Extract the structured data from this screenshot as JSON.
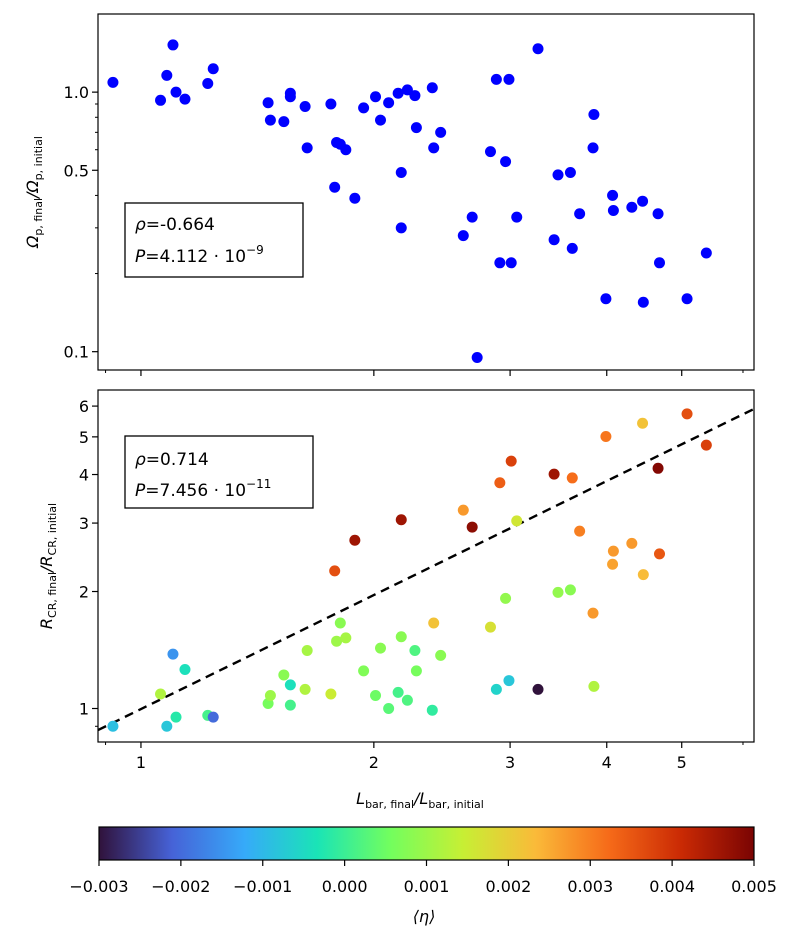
{
  "chart_data": [
    {
      "type": "scatter",
      "xscale": "log",
      "yscale": "log",
      "xlim": [
        0.88,
        6.2
      ],
      "ylim": [
        0.085,
        2.0
      ],
      "ylabel": {
        "main": "Ω",
        "sub1": "p, final",
        "mid": "/Ω",
        "sub2": "p, initial"
      },
      "yticks": [
        {
          "v": 0.1,
          "label": "0.1"
        },
        {
          "v": 0.5,
          "label": "0.5"
        },
        {
          "v": 1.0,
          "label": "1.0"
        }
      ],
      "stats": {
        "rho_label": "ρ",
        "rho": "=-0.664",
        "p_label": "P",
        "p_text": "=4.112 · 10",
        "p_exp": "−9"
      },
      "marker_color": "#0000ff",
      "points": [
        [
          0.92,
          1.09
        ],
        [
          1.06,
          0.93
        ],
        [
          1.08,
          1.16
        ],
        [
          1.1,
          1.52
        ],
        [
          1.11,
          1.0
        ],
        [
          1.14,
          0.94
        ],
        [
          1.22,
          1.08
        ],
        [
          1.24,
          1.23
        ],
        [
          1.46,
          0.91
        ],
        [
          1.47,
          0.78
        ],
        [
          1.53,
          0.77
        ],
        [
          1.56,
          0.99
        ],
        [
          1.56,
          0.96
        ],
        [
          1.63,
          0.88
        ],
        [
          1.64,
          0.61
        ],
        [
          1.76,
          0.9
        ],
        [
          1.78,
          0.43
        ],
        [
          1.79,
          0.64
        ],
        [
          1.81,
          0.63
        ],
        [
          1.84,
          0.6
        ],
        [
          1.89,
          0.39
        ],
        [
          1.94,
          0.87
        ],
        [
          2.01,
          0.96
        ],
        [
          2.04,
          0.78
        ],
        [
          2.09,
          0.91
        ],
        [
          2.15,
          0.99
        ],
        [
          2.17,
          0.49
        ],
        [
          2.17,
          0.3
        ],
        [
          2.21,
          1.02
        ],
        [
          2.26,
          0.97
        ],
        [
          2.27,
          0.73
        ],
        [
          2.38,
          1.04
        ],
        [
          2.39,
          0.61
        ],
        [
          2.44,
          0.7
        ],
        [
          2.61,
          0.28
        ],
        [
          2.68,
          0.33
        ],
        [
          2.72,
          0.095
        ],
        [
          2.83,
          0.59
        ],
        [
          2.88,
          1.12
        ],
        [
          2.91,
          0.22
        ],
        [
          2.96,
          0.54
        ],
        [
          2.99,
          1.12
        ],
        [
          3.01,
          0.22
        ],
        [
          3.06,
          0.33
        ],
        [
          3.26,
          1.47
        ],
        [
          3.42,
          0.27
        ],
        [
          3.46,
          0.48
        ],
        [
          3.59,
          0.49
        ],
        [
          3.61,
          0.25
        ],
        [
          3.69,
          0.34
        ],
        [
          3.84,
          0.61
        ],
        [
          3.85,
          0.82
        ],
        [
          3.99,
          0.16
        ],
        [
          4.07,
          0.4
        ],
        [
          4.08,
          0.35
        ],
        [
          4.31,
          0.36
        ],
        [
          4.45,
          0.38
        ],
        [
          4.46,
          0.155
        ],
        [
          4.66,
          0.34
        ],
        [
          4.68,
          0.22
        ],
        [
          5.08,
          0.16
        ],
        [
          5.38,
          0.24
        ]
      ]
    },
    {
      "type": "scatter",
      "xscale": "log",
      "yscale": "log",
      "xlim": [
        0.88,
        6.2
      ],
      "ylim": [
        0.82,
        6.6
      ],
      "xlabel": {
        "main": "L",
        "sub1": "bar, final",
        "mid": "/L",
        "sub2": "bar, initial"
      },
      "ylabel": {
        "main": "R",
        "sub1": "CR, final",
        "mid": "/R",
        "sub2": "CR, initial"
      },
      "xticks": [
        {
          "v": 1,
          "label": "1"
        },
        {
          "v": 2,
          "label": "2"
        },
        {
          "v": 3,
          "label": "3"
        },
        {
          "v": 4,
          "label": "4"
        },
        {
          "v": 5,
          "label": "5"
        }
      ],
      "yticks": [
        {
          "v": 1,
          "label": "1"
        },
        {
          "v": 2,
          "label": "2"
        },
        {
          "v": 3,
          "label": "3"
        },
        {
          "v": 4,
          "label": "4"
        },
        {
          "v": 5,
          "label": "5"
        },
        {
          "v": 6,
          "label": "6"
        }
      ],
      "stats": {
        "rho_label": "ρ",
        "rho": "=0.714",
        "p_label": "P",
        "p_text": "=7.456 · 10",
        "p_exp": "−11"
      },
      "fit_line": {
        "x0": 0.88,
        "y0": 0.88,
        "x1": 6.2,
        "y1": 5.9,
        "style": "dashed"
      },
      "points": [
        [
          0.92,
          0.9,
          -0.0009
        ],
        [
          1.06,
          1.09,
          0.0012
        ],
        [
          1.08,
          0.9,
          -0.0008
        ],
        [
          1.1,
          1.38,
          -0.0015
        ],
        [
          1.11,
          0.95,
          -0.0002
        ],
        [
          1.14,
          1.26,
          -0.0004
        ],
        [
          1.22,
          0.96,
          0.0001
        ],
        [
          1.24,
          0.95,
          -0.002
        ],
        [
          1.46,
          1.03,
          0.0006
        ],
        [
          1.47,
          1.08,
          0.001
        ],
        [
          1.53,
          1.22,
          0.0008
        ],
        [
          1.56,
          1.15,
          -0.0004
        ],
        [
          1.56,
          1.02,
          0.0001
        ],
        [
          1.63,
          1.12,
          0.0012
        ],
        [
          1.64,
          1.41,
          0.0011
        ],
        [
          1.76,
          1.09,
          0.0015
        ],
        [
          1.78,
          2.26,
          0.0036
        ],
        [
          1.79,
          1.49,
          0.001
        ],
        [
          1.81,
          1.66,
          0.0008
        ],
        [
          1.84,
          1.52,
          0.0011
        ],
        [
          1.89,
          2.71,
          0.0046
        ],
        [
          1.94,
          1.25,
          0.0007
        ],
        [
          2.01,
          1.08,
          0.0005
        ],
        [
          2.04,
          1.43,
          0.0008
        ],
        [
          2.09,
          1.0,
          0.0003
        ],
        [
          2.15,
          1.1,
          0.0001
        ],
        [
          2.17,
          1.53,
          0.0008
        ],
        [
          2.17,
          3.06,
          0.0046
        ],
        [
          2.21,
          1.05,
          0.0002
        ],
        [
          2.26,
          1.41,
          0.0002
        ],
        [
          2.27,
          1.25,
          0.0006
        ],
        [
          2.38,
          0.99,
          -0.0001
        ],
        [
          2.39,
          1.66,
          0.0022
        ],
        [
          2.44,
          1.37,
          0.0008
        ],
        [
          2.61,
          3.24,
          0.0027
        ],
        [
          2.68,
          2.93,
          0.0048
        ],
        [
          2.83,
          1.62,
          0.0017
        ],
        [
          2.88,
          1.12,
          -0.0006
        ],
        [
          2.91,
          3.81,
          0.0034
        ],
        [
          2.96,
          1.92,
          0.0009
        ],
        [
          2.99,
          1.18,
          -0.0008
        ],
        [
          3.01,
          4.33,
          0.0038
        ],
        [
          3.06,
          3.04,
          0.0016
        ],
        [
          3.26,
          1.12,
          -0.003
        ],
        [
          3.42,
          4.01,
          0.0046
        ],
        [
          3.46,
          1.99,
          0.0009
        ],
        [
          3.59,
          2.02,
          0.0008
        ],
        [
          3.61,
          3.92,
          0.0032
        ],
        [
          3.69,
          2.86,
          0.003
        ],
        [
          3.84,
          1.76,
          0.0027
        ],
        [
          3.85,
          1.14,
          0.0012
        ],
        [
          3.99,
          5.01,
          0.0031
        ],
        [
          4.07,
          2.35,
          0.0026
        ],
        [
          4.08,
          2.54,
          0.0027
        ],
        [
          4.31,
          2.66,
          0.0027
        ],
        [
          4.45,
          5.42,
          0.0022
        ],
        [
          4.46,
          2.21,
          0.0023
        ],
        [
          4.66,
          4.15,
          0.0049
        ],
        [
          4.68,
          2.5,
          0.0035
        ],
        [
          5.08,
          5.73,
          0.0036
        ],
        [
          5.38,
          4.76,
          0.0038
        ]
      ]
    },
    {
      "type": "colorbar",
      "range": [
        -0.003,
        0.005
      ],
      "ticks": [
        {
          "v": -0.003,
          "label": "−0.003"
        },
        {
          "v": -0.002,
          "label": "−0.002"
        },
        {
          "v": -0.001,
          "label": "−0.001"
        },
        {
          "v": 0.0,
          "label": "0.000"
        },
        {
          "v": 0.001,
          "label": "0.001"
        },
        {
          "v": 0.002,
          "label": "0.002"
        },
        {
          "v": 0.003,
          "label": "0.003"
        },
        {
          "v": 0.004,
          "label": "0.004"
        },
        {
          "v": 0.005,
          "label": "0.005"
        }
      ],
      "label": "⟨η⟩",
      "colormap": "turbo",
      "colormap_stops": [
        "#30123b",
        "#4662d7",
        "#36aaf9",
        "#1ae4b6",
        "#72fe5e",
        "#c7ef34",
        "#faba39",
        "#f66b19",
        "#ca2a04",
        "#7a0403"
      ]
    }
  ]
}
